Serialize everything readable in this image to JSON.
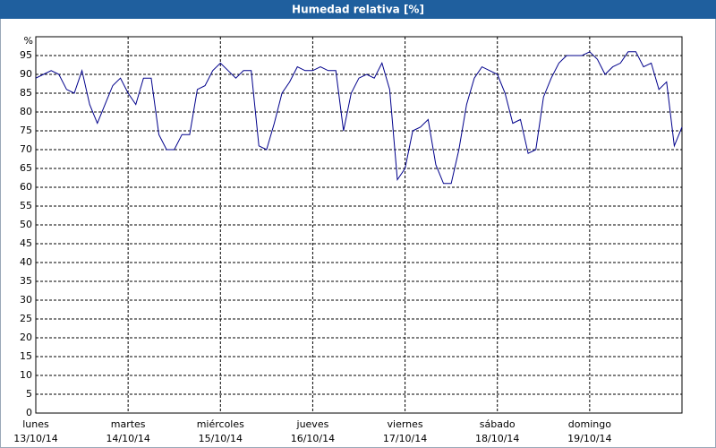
{
  "chart_data": {
    "type": "line",
    "title": "Humedad relativa [%]",
    "y_label": "%",
    "ylim": [
      0,
      100
    ],
    "yticks": [
      0,
      5,
      10,
      15,
      20,
      25,
      30,
      35,
      40,
      45,
      50,
      55,
      60,
      65,
      70,
      75,
      80,
      85,
      90,
      95
    ],
    "grid": true,
    "color": "#00008b",
    "xticks": [
      {
        "day": "lunes",
        "date": "13/10/14"
      },
      {
        "day": "martes",
        "date": "14/10/14"
      },
      {
        "day": "miércoles",
        "date": "15/10/14"
      },
      {
        "day": "jueves",
        "date": "16/10/14"
      },
      {
        "day": "viernes",
        "date": "17/10/14"
      },
      {
        "day": "sábado",
        "date": "18/10/14"
      },
      {
        "day": "domingo",
        "date": "19/10/14"
      }
    ],
    "values": [
      89,
      90,
      91,
      90,
      86,
      85,
      91,
      82,
      77,
      82,
      87,
      89,
      85,
      82,
      89,
      89,
      74,
      70,
      70,
      74,
      74,
      86,
      87,
      91,
      93,
      91,
      89,
      91,
      91,
      71,
      70,
      77,
      85,
      88,
      92,
      91,
      91,
      92,
      91,
      91,
      75,
      85,
      89,
      90,
      89,
      93,
      86,
      62,
      65,
      75,
      76,
      78,
      66,
      61,
      61,
      70,
      82,
      89,
      92,
      91,
      90,
      85,
      77,
      78,
      69,
      70,
      84,
      89,
      93,
      95,
      95,
      95,
      96,
      94,
      90,
      92,
      93,
      96,
      96,
      92,
      93,
      86,
      88,
      71,
      76
    ]
  }
}
